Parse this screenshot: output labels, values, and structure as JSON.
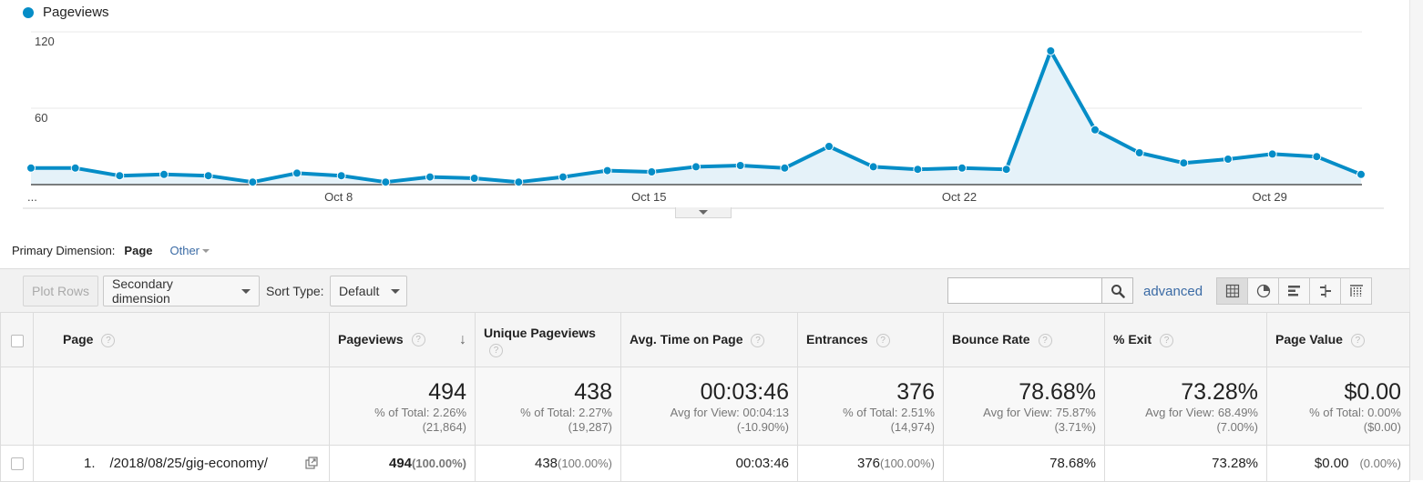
{
  "legend": {
    "label": "Pageviews",
    "color": "#058dc7"
  },
  "chart_data": {
    "type": "area",
    "series": [
      {
        "name": "Pageviews",
        "values": [
          13,
          13,
          7,
          8,
          7,
          2,
          9,
          7,
          2,
          6,
          5,
          2,
          6,
          11,
          10,
          14,
          15,
          13,
          30,
          14,
          12,
          13,
          12,
          105,
          43,
          25,
          17,
          20,
          24,
          22,
          8
        ]
      }
    ],
    "x_ticks": [
      "...",
      "Oct 8",
      "Oct 15",
      "Oct 22",
      "Oct 29"
    ],
    "y_ticks": [
      "120",
      "60"
    ],
    "ylim": [
      0,
      120
    ],
    "grid": true
  },
  "primary_dimension": {
    "label": "Primary Dimension:",
    "active": "Page",
    "other": "Other"
  },
  "toolbar": {
    "plot_rows": "Plot Rows",
    "secondary_dimension": "Secondary dimension",
    "sort_type_label": "Sort Type:",
    "sort_type_value": "Default",
    "search_value": "",
    "advanced": "advanced"
  },
  "table": {
    "headers": {
      "page": "Page",
      "pageviews": "Pageviews",
      "unique_pageviews": "Unique Pageviews",
      "avg_time": "Avg. Time on Page",
      "entrances": "Entrances",
      "bounce_rate": "Bounce Rate",
      "exit": "% Exit",
      "page_value": "Page Value"
    },
    "help_glyph": "?",
    "sort_glyph": "↓",
    "totals": {
      "pageviews": {
        "value": "494",
        "sub1": "% of Total: 2.26%",
        "sub2": "(21,864)"
      },
      "unique_pageviews": {
        "value": "438",
        "sub1": "% of Total: 2.27%",
        "sub2": "(19,287)"
      },
      "avg_time": {
        "value": "00:03:46",
        "sub1": "Avg for View: 00:04:13",
        "sub2": "(-10.90%)"
      },
      "entrances": {
        "value": "376",
        "sub1": "% of Total: 2.51%",
        "sub2": "(14,974)"
      },
      "bounce_rate": {
        "value": "78.68%",
        "sub1": "Avg for View: 75.87%",
        "sub2": "(3.71%)"
      },
      "exit": {
        "value": "73.28%",
        "sub1": "Avg for View: 68.49%",
        "sub2": "(7.00%)"
      },
      "page_value": {
        "value": "$0.00",
        "sub1": "% of Total: 0.00%",
        "sub2": "($0.00)"
      }
    },
    "rows": [
      {
        "index": "1.",
        "page": "/2018/08/25/gig-economy/",
        "pageviews": "494",
        "pageviews_pct": "(100.00%)",
        "unique_pageviews": "438",
        "unique_pageviews_pct": "(100.00%)",
        "avg_time": "00:03:46",
        "entrances": "376",
        "entrances_pct": "(100.00%)",
        "bounce_rate": "78.68%",
        "exit": "73.28%",
        "page_value": "$0.00",
        "page_value_pct": "(0.00%)"
      }
    ]
  }
}
